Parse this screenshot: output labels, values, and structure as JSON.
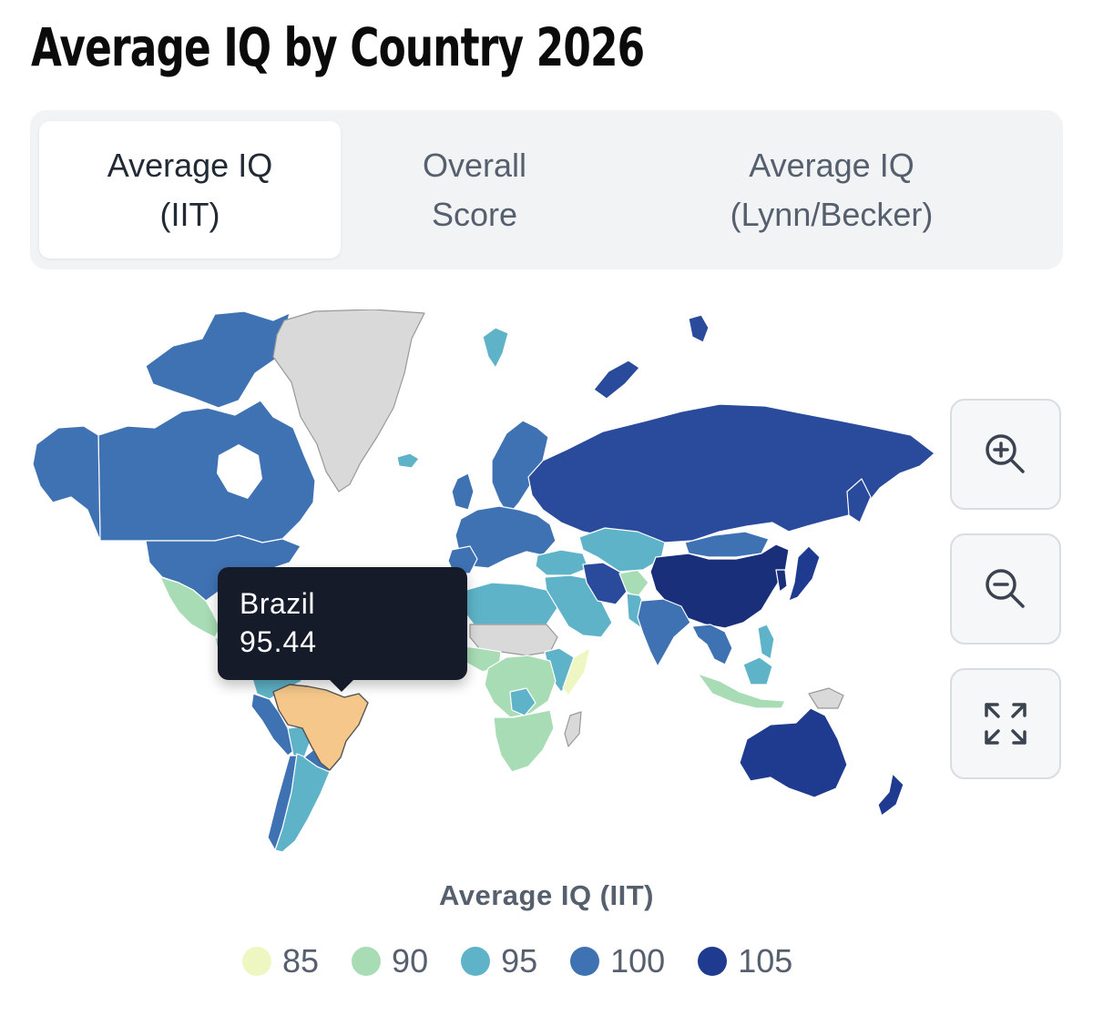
{
  "page": {
    "title": "Average IQ by Country 2026"
  },
  "tabs": [
    {
      "line1": "Average IQ",
      "line2": "(IIT)",
      "active": true
    },
    {
      "line1": "Overall",
      "line2": "Score",
      "active": false
    },
    {
      "line1": "Average IQ",
      "line2": "(Lynn/Becker)",
      "active": false
    }
  ],
  "map": {
    "colors": {
      "c85": "#eef6c2",
      "c90": "#a8dcb4",
      "c95": "#5fb3c8",
      "c100": "#3f72b3",
      "c105": "#1f3b8f",
      "nodata": "#d9d9d9",
      "highlight": "#f5c78a"
    },
    "tooltip": {
      "country": "Brazil",
      "value": "95.44"
    },
    "controls": {
      "zoom_in": "zoom-in-icon",
      "zoom_out": "zoom-out-icon",
      "fullscreen": "fullscreen-icon"
    }
  },
  "legend": {
    "title": "Average IQ (IIT)",
    "items": [
      {
        "label": "85",
        "color": "#eef6c2"
      },
      {
        "label": "90",
        "color": "#a8dcb4"
      },
      {
        "label": "95",
        "color": "#5fb3c8"
      },
      {
        "label": "100",
        "color": "#3f72b3"
      },
      {
        "label": "105",
        "color": "#1f3b8f"
      }
    ]
  }
}
